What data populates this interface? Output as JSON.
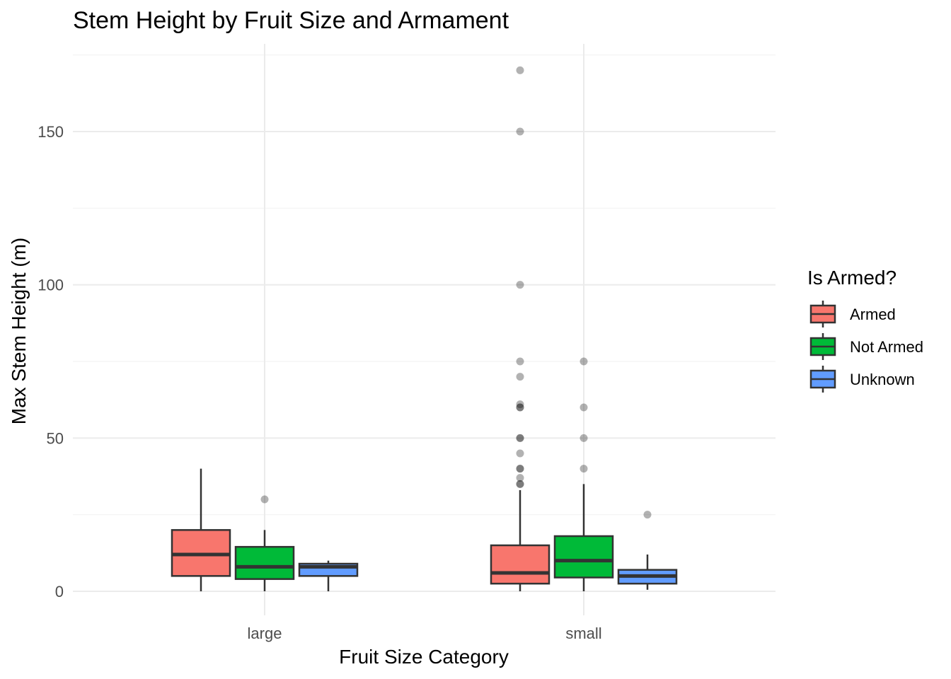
{
  "chart_data": {
    "type": "boxplot",
    "title": "Stem Height by Fruit Size and Armament",
    "xlabel": "Fruit Size Category",
    "ylabel": "Max Stem Height (m)",
    "ylim": [
      -8,
      176
    ],
    "yticks": [
      0,
      50,
      100,
      150
    ],
    "grid": true,
    "categories": [
      "large",
      "small"
    ],
    "legend": {
      "title": "Is Armed?",
      "position": "right",
      "entries": [
        "Armed",
        "Not Armed",
        "Unknown"
      ]
    },
    "series": [
      {
        "name": "Armed",
        "color": "#F8766D",
        "boxes": [
          {
            "category": "large",
            "min": 0,
            "q1": 5,
            "median": 12,
            "q3": 20,
            "max": 40,
            "outliers": []
          },
          {
            "category": "small",
            "min": 0,
            "q1": 2.5,
            "median": 6,
            "q3": 15,
            "max": 33,
            "outliers": [
              35,
              35,
              37,
              40,
              40,
              45,
              50,
              50,
              60,
              60,
              61,
              70,
              75,
              100,
              150,
              170
            ]
          }
        ]
      },
      {
        "name": "Not Armed",
        "color": "#00BA38",
        "boxes": [
          {
            "category": "large",
            "min": 0,
            "q1": 4,
            "median": 8,
            "q3": 14.5,
            "max": 20,
            "outliers": [
              30
            ]
          },
          {
            "category": "small",
            "min": 0,
            "q1": 4.5,
            "median": 10,
            "q3": 18,
            "max": 35,
            "outliers": [
              40,
              50,
              60,
              75
            ]
          }
        ]
      },
      {
        "name": "Unknown",
        "color": "#619CFF",
        "boxes": [
          {
            "category": "large",
            "min": 0,
            "q1": 5,
            "median": 8,
            "q3": 9,
            "max": 10,
            "outliers": []
          },
          {
            "category": "small",
            "min": 0.5,
            "q1": 2.5,
            "median": 5,
            "q3": 7,
            "max": 12,
            "outliers": [
              25
            ]
          }
        ]
      }
    ]
  }
}
